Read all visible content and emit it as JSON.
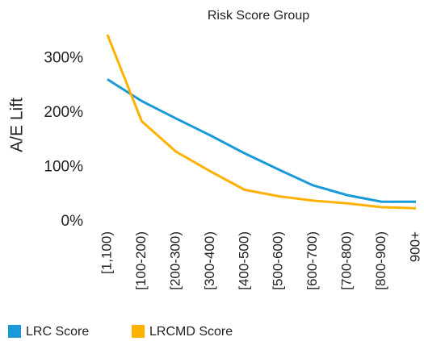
{
  "chart_data": {
    "type": "line",
    "title": "Risk Score Group",
    "y_label": "A/E Lift",
    "categories": [
      "[1,100)",
      "[100-200)",
      "[200-300)",
      "[300-400)",
      "[400-500)",
      "[500-600)",
      "[600-700)",
      "[700-800)",
      "[800-900)",
      "900+"
    ],
    "series": [
      {
        "name": "LRC Score",
        "color": "#1a9ad6",
        "values": [
          262,
          222,
          190,
          159,
          126,
          96,
          67,
          49,
          37,
          37
        ]
      },
      {
        "name": "LRCMD Score",
        "color": "#ffb000",
        "values": [
          344,
          185,
          129,
          93,
          59,
          47,
          39,
          34,
          27,
          25
        ]
      }
    ],
    "ylim": [
      -10,
      350
    ],
    "yticks": [
      {
        "value": 0,
        "label": "0%"
      },
      {
        "value": 100,
        "label": "100%"
      },
      {
        "value": 200,
        "label": "200%"
      },
      {
        "value": 300,
        "label": "300%"
      }
    ],
    "grid": false,
    "legend": "bottom"
  }
}
